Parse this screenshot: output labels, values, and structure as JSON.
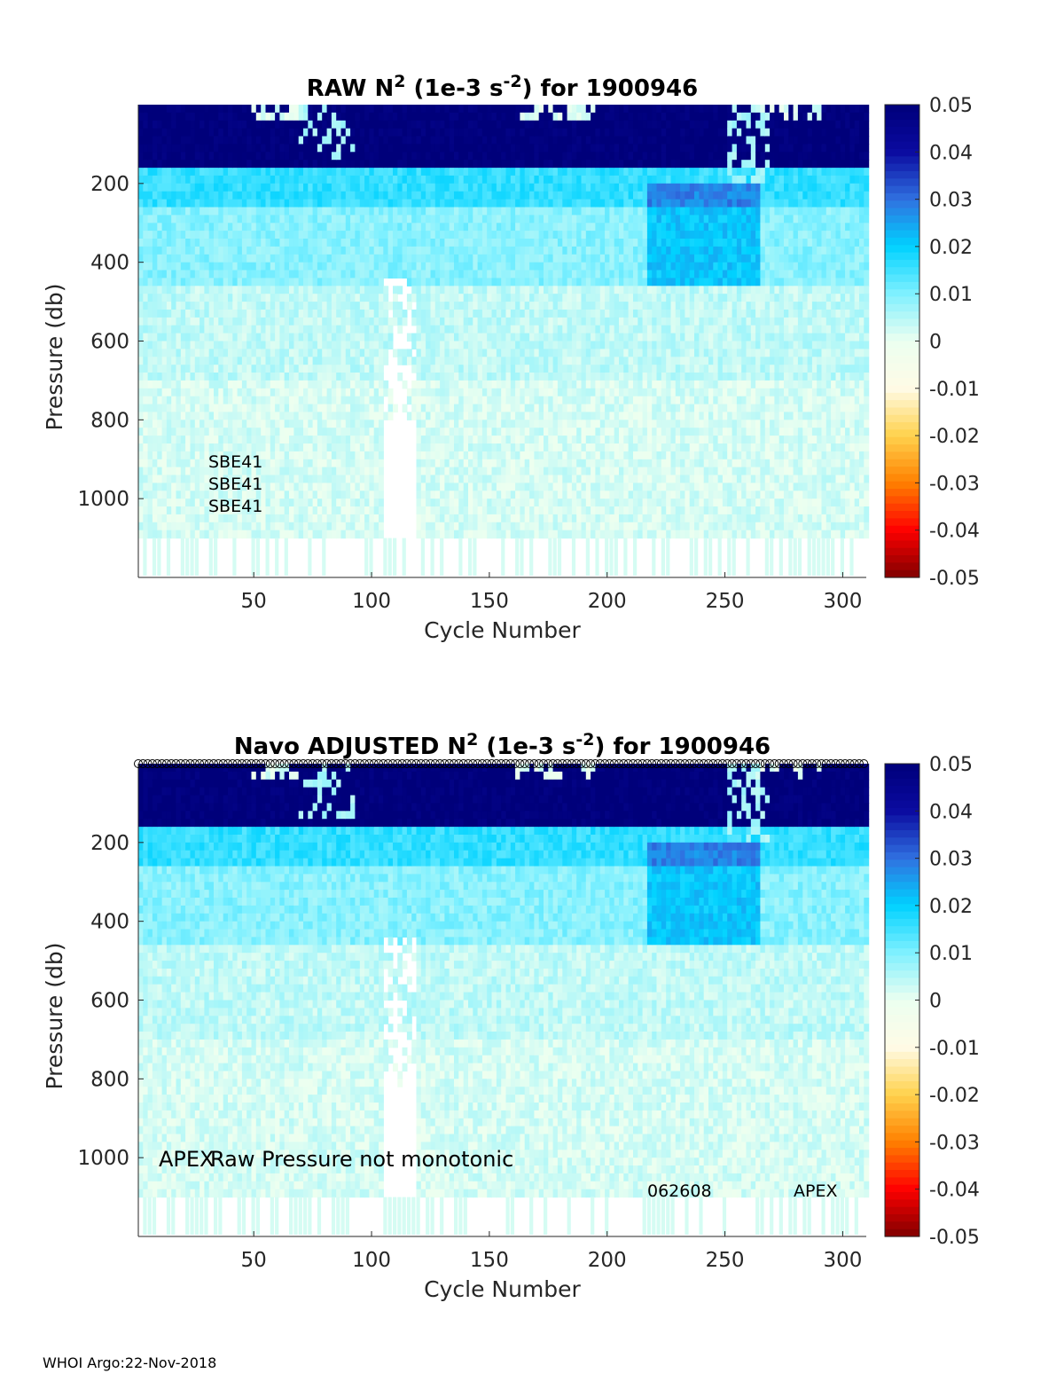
{
  "footer": "WHOI Argo:22-Nov-2018",
  "colors": {
    "colormap": [
      "#800000",
      "#ff0000",
      "#ff8000",
      "#ffd24d",
      "#fffbe6",
      "#ebfff0",
      "#7ff0ff",
      "#00d2ff",
      "#3070e0",
      "#0a0aa0",
      "#00007a"
    ],
    "background_fill": "#ebfff0",
    "text": "#000000",
    "axis": "#262626"
  },
  "chart_data": [
    {
      "type": "heatmap",
      "title_parts": [
        "RAW N",
        "2",
        " (1e-3 s",
        "-2",
        ") for 1900946"
      ],
      "xlabel": "Cycle Number",
      "ylabel": "Pressure (db)",
      "xlim": [
        1,
        310
      ],
      "ylim": [
        0,
        1200
      ],
      "y_reversed": true,
      "xticks": [
        50,
        100,
        150,
        200,
        250,
        300
      ],
      "yticks": [
        200,
        400,
        600,
        800,
        1000
      ],
      "colorbar": {
        "clim": [
          -0.05,
          0.05
        ],
        "ticks": [
          "0.05",
          "0.04",
          "0.03",
          "0.02",
          "0.01",
          "0",
          "-0.01",
          "-0.02",
          "-0.03",
          "-0.04",
          "-0.05"
        ]
      },
      "annotations": [
        "SBE41",
        "SBE41",
        "SBE41"
      ],
      "profile_markers": false
    },
    {
      "type": "heatmap",
      "title_parts": [
        "Navo  ADJUSTED N",
        "2",
        " (1e-3 s",
        "-2",
        ") for 1900946"
      ],
      "xlabel": "Cycle Number",
      "ylabel": "Pressure (db)",
      "xlim": [
        1,
        310
      ],
      "ylim": [
        0,
        1200
      ],
      "y_reversed": true,
      "xticks": [
        50,
        100,
        150,
        200,
        250,
        300
      ],
      "yticks": [
        200,
        400,
        600,
        800,
        1000
      ],
      "colorbar": {
        "clim": [
          -0.05,
          0.05
        ],
        "ticks": [
          "0.05",
          "0.04",
          "0.03",
          "0.02",
          "0.01",
          "0",
          "-0.01",
          "-0.02",
          "-0.03",
          "-0.04",
          "-0.05"
        ]
      },
      "annotations": [
        "APEX",
        "Raw Pressure not monotonic",
        "062608",
        "APEX"
      ],
      "profile_markers": true
    }
  ]
}
